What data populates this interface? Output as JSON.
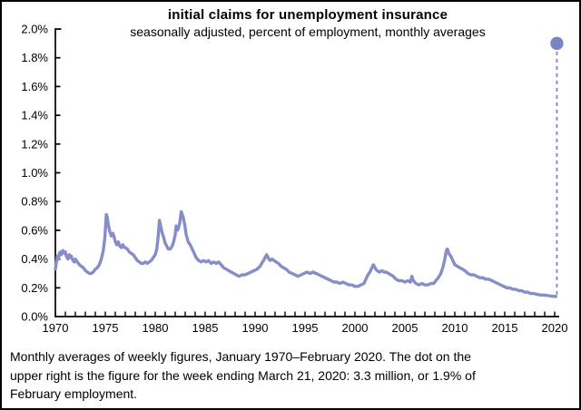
{
  "chart_data": {
    "type": "line",
    "title": "initial claims for unemployment insurance",
    "subtitle": "seasonally adjusted, percent of employment, monthly averages",
    "xlabel": "",
    "ylabel": "",
    "xlim": [
      1970,
      2020.5
    ],
    "ylim": [
      0.0,
      2.0
    ],
    "grid": false,
    "legend": "none",
    "y_ticks": [
      {
        "v": 2.0,
        "label": "2.0%"
      },
      {
        "v": 1.8,
        "label": "1.8%"
      },
      {
        "v": 1.6,
        "label": "1.6%"
      },
      {
        "v": 1.4,
        "label": "1.4%"
      },
      {
        "v": 1.2,
        "label": "1.2%"
      },
      {
        "v": 1.0,
        "label": "1.0%"
      },
      {
        "v": 0.8,
        "label": "0.8%"
      },
      {
        "v": 0.6,
        "label": "0.6%"
      },
      {
        "v": 0.4,
        "label": "0.4%"
      },
      {
        "v": 0.2,
        "label": "0.2%"
      },
      {
        "v": 0.0,
        "label": "0.0%"
      }
    ],
    "x_ticks": [
      {
        "v": 1970,
        "label": "1970"
      },
      {
        "v": 1975,
        "label": "1975"
      },
      {
        "v": 1980,
        "label": "1980"
      },
      {
        "v": 1985,
        "label": "1985"
      },
      {
        "v": 1990,
        "label": "1990"
      },
      {
        "v": 1995,
        "label": "1995"
      },
      {
        "v": 2000,
        "label": "2000"
      },
      {
        "v": 2005,
        "label": "2005"
      },
      {
        "v": 2010,
        "label": "2010"
      },
      {
        "v": 2015,
        "label": "2015"
      },
      {
        "v": 2020,
        "label": "2020"
      }
    ],
    "x_minor_tick_step": 1,
    "axis_color": "#000000",
    "series": [
      {
        "name": "initial claims, percent of employment, monthly average",
        "color": "#868dc7",
        "points": [
          [
            1970.0,
            0.33
          ],
          [
            1970.08,
            0.37
          ],
          [
            1970.2,
            0.42
          ],
          [
            1970.3,
            0.4
          ],
          [
            1970.4,
            0.44
          ],
          [
            1970.5,
            0.45
          ],
          [
            1970.6,
            0.43
          ],
          [
            1970.75,
            0.46
          ],
          [
            1970.9,
            0.44
          ],
          [
            1971.0,
            0.45
          ],
          [
            1971.1,
            0.42
          ],
          [
            1971.25,
            0.4
          ],
          [
            1971.4,
            0.43
          ],
          [
            1971.5,
            0.41
          ],
          [
            1971.6,
            0.42
          ],
          [
            1971.75,
            0.39
          ],
          [
            1971.9,
            0.38
          ],
          [
            1972.0,
            0.4
          ],
          [
            1972.2,
            0.38
          ],
          [
            1972.4,
            0.36
          ],
          [
            1972.6,
            0.35
          ],
          [
            1972.8,
            0.34
          ],
          [
            1973.0,
            0.32
          ],
          [
            1973.2,
            0.31
          ],
          [
            1973.4,
            0.3
          ],
          [
            1973.6,
            0.3
          ],
          [
            1973.8,
            0.31
          ],
          [
            1974.0,
            0.33
          ],
          [
            1974.2,
            0.34
          ],
          [
            1974.4,
            0.36
          ],
          [
            1974.6,
            0.4
          ],
          [
            1974.8,
            0.46
          ],
          [
            1974.95,
            0.55
          ],
          [
            1975.1,
            0.71
          ],
          [
            1975.2,
            0.69
          ],
          [
            1975.3,
            0.64
          ],
          [
            1975.45,
            0.59
          ],
          [
            1975.6,
            0.56
          ],
          [
            1975.75,
            0.58
          ],
          [
            1975.9,
            0.55
          ],
          [
            1976.0,
            0.52
          ],
          [
            1976.15,
            0.5
          ],
          [
            1976.3,
            0.52
          ],
          [
            1976.45,
            0.49
          ],
          [
            1976.6,
            0.48
          ],
          [
            1976.75,
            0.5
          ],
          [
            1976.9,
            0.48
          ],
          [
            1977.0,
            0.48
          ],
          [
            1977.2,
            0.47
          ],
          [
            1977.4,
            0.45
          ],
          [
            1977.6,
            0.44
          ],
          [
            1977.8,
            0.43
          ],
          [
            1978.0,
            0.41
          ],
          [
            1978.2,
            0.39
          ],
          [
            1978.4,
            0.38
          ],
          [
            1978.6,
            0.37
          ],
          [
            1978.8,
            0.37
          ],
          [
            1979.0,
            0.38
          ],
          [
            1979.2,
            0.37
          ],
          [
            1979.4,
            0.38
          ],
          [
            1979.6,
            0.39
          ],
          [
            1979.8,
            0.41
          ],
          [
            1980.0,
            0.43
          ],
          [
            1980.15,
            0.47
          ],
          [
            1980.3,
            0.56
          ],
          [
            1980.42,
            0.67
          ],
          [
            1980.55,
            0.63
          ],
          [
            1980.7,
            0.58
          ],
          [
            1980.85,
            0.55
          ],
          [
            1981.0,
            0.51
          ],
          [
            1981.15,
            0.49
          ],
          [
            1981.3,
            0.47
          ],
          [
            1981.5,
            0.47
          ],
          [
            1981.7,
            0.49
          ],
          [
            1981.85,
            0.52
          ],
          [
            1982.0,
            0.57
          ],
          [
            1982.1,
            0.63
          ],
          [
            1982.2,
            0.6
          ],
          [
            1982.3,
            0.61
          ],
          [
            1982.45,
            0.65
          ],
          [
            1982.6,
            0.73
          ],
          [
            1982.7,
            0.71
          ],
          [
            1982.8,
            0.69
          ],
          [
            1982.95,
            0.64
          ],
          [
            1983.1,
            0.57
          ],
          [
            1983.3,
            0.52
          ],
          [
            1983.5,
            0.5
          ],
          [
            1983.7,
            0.47
          ],
          [
            1983.9,
            0.44
          ],
          [
            1984.1,
            0.41
          ],
          [
            1984.35,
            0.39
          ],
          [
            1984.6,
            0.38
          ],
          [
            1984.85,
            0.39
          ],
          [
            1985.1,
            0.38
          ],
          [
            1985.35,
            0.39
          ],
          [
            1985.6,
            0.37
          ],
          [
            1985.85,
            0.38
          ],
          [
            1986.1,
            0.37
          ],
          [
            1986.35,
            0.38
          ],
          [
            1986.6,
            0.36
          ],
          [
            1986.85,
            0.34
          ],
          [
            1987.1,
            0.33
          ],
          [
            1987.35,
            0.32
          ],
          [
            1987.6,
            0.31
          ],
          [
            1987.85,
            0.3
          ],
          [
            1988.1,
            0.29
          ],
          [
            1988.4,
            0.28
          ],
          [
            1988.7,
            0.29
          ],
          [
            1989.0,
            0.29
          ],
          [
            1989.3,
            0.3
          ],
          [
            1989.6,
            0.31
          ],
          [
            1989.9,
            0.32
          ],
          [
            1990.2,
            0.33
          ],
          [
            1990.5,
            0.35
          ],
          [
            1990.75,
            0.38
          ],
          [
            1991.0,
            0.41
          ],
          [
            1991.15,
            0.43
          ],
          [
            1991.3,
            0.41
          ],
          [
            1991.5,
            0.39
          ],
          [
            1991.7,
            0.4
          ],
          [
            1991.9,
            0.39
          ],
          [
            1992.1,
            0.38
          ],
          [
            1992.35,
            0.37
          ],
          [
            1992.6,
            0.35
          ],
          [
            1992.85,
            0.34
          ],
          [
            1993.1,
            0.33
          ],
          [
            1993.4,
            0.31
          ],
          [
            1993.7,
            0.3
          ],
          [
            1994.0,
            0.29
          ],
          [
            1994.3,
            0.28
          ],
          [
            1994.6,
            0.29
          ],
          [
            1994.9,
            0.3
          ],
          [
            1995.2,
            0.31
          ],
          [
            1995.5,
            0.3
          ],
          [
            1995.8,
            0.31
          ],
          [
            1996.1,
            0.3
          ],
          [
            1996.4,
            0.29
          ],
          [
            1996.7,
            0.28
          ],
          [
            1997.0,
            0.27
          ],
          [
            1997.3,
            0.26
          ],
          [
            1997.6,
            0.25
          ],
          [
            1997.9,
            0.24
          ],
          [
            1998.2,
            0.24
          ],
          [
            1998.5,
            0.23
          ],
          [
            1998.8,
            0.24
          ],
          [
            1999.1,
            0.23
          ],
          [
            1999.4,
            0.22
          ],
          [
            1999.7,
            0.22
          ],
          [
            2000.0,
            0.21
          ],
          [
            2000.3,
            0.21
          ],
          [
            2000.6,
            0.22
          ],
          [
            2000.9,
            0.23
          ],
          [
            2001.1,
            0.26
          ],
          [
            2001.3,
            0.29
          ],
          [
            2001.5,
            0.31
          ],
          [
            2001.7,
            0.34
          ],
          [
            2001.85,
            0.36
          ],
          [
            2002.0,
            0.34
          ],
          [
            2002.2,
            0.32
          ],
          [
            2002.45,
            0.31
          ],
          [
            2002.7,
            0.32
          ],
          [
            2002.9,
            0.31
          ],
          [
            2003.1,
            0.31
          ],
          [
            2003.35,
            0.3
          ],
          [
            2003.6,
            0.29
          ],
          [
            2003.85,
            0.28
          ],
          [
            2004.1,
            0.26
          ],
          [
            2004.4,
            0.25
          ],
          [
            2004.7,
            0.25
          ],
          [
            2005.0,
            0.24
          ],
          [
            2005.3,
            0.25
          ],
          [
            2005.55,
            0.24
          ],
          [
            2005.7,
            0.28
          ],
          [
            2005.85,
            0.25
          ],
          [
            2006.1,
            0.23
          ],
          [
            2006.4,
            0.22
          ],
          [
            2006.7,
            0.23
          ],
          [
            2007.0,
            0.22
          ],
          [
            2007.3,
            0.22
          ],
          [
            2007.6,
            0.23
          ],
          [
            2007.9,
            0.23
          ],
          [
            2008.1,
            0.25
          ],
          [
            2008.35,
            0.27
          ],
          [
            2008.6,
            0.3
          ],
          [
            2008.8,
            0.34
          ],
          [
            2009.0,
            0.4
          ],
          [
            2009.15,
            0.46
          ],
          [
            2009.25,
            0.47
          ],
          [
            2009.4,
            0.44
          ],
          [
            2009.6,
            0.42
          ],
          [
            2009.8,
            0.39
          ],
          [
            2010.0,
            0.36
          ],
          [
            2010.25,
            0.35
          ],
          [
            2010.5,
            0.34
          ],
          [
            2010.75,
            0.33
          ],
          [
            2011.0,
            0.32
          ],
          [
            2011.3,
            0.3
          ],
          [
            2011.6,
            0.29
          ],
          [
            2011.9,
            0.29
          ],
          [
            2012.2,
            0.28
          ],
          [
            2012.5,
            0.27
          ],
          [
            2012.8,
            0.27
          ],
          [
            2013.1,
            0.26
          ],
          [
            2013.4,
            0.26
          ],
          [
            2013.7,
            0.25
          ],
          [
            2014.0,
            0.24
          ],
          [
            2014.3,
            0.23
          ],
          [
            2014.6,
            0.22
          ],
          [
            2014.9,
            0.21
          ],
          [
            2015.2,
            0.2
          ],
          [
            2015.5,
            0.2
          ],
          [
            2015.8,
            0.19
          ],
          [
            2016.1,
            0.19
          ],
          [
            2016.4,
            0.18
          ],
          [
            2016.7,
            0.18
          ],
          [
            2017.0,
            0.17
          ],
          [
            2017.3,
            0.17
          ],
          [
            2017.6,
            0.16
          ],
          [
            2017.9,
            0.16
          ],
          [
            2018.2,
            0.155
          ],
          [
            2018.5,
            0.15
          ],
          [
            2018.8,
            0.15
          ],
          [
            2019.1,
            0.148
          ],
          [
            2019.4,
            0.145
          ],
          [
            2019.7,
            0.142
          ],
          [
            2020.0,
            0.14
          ],
          [
            2020.12,
            0.14
          ]
        ]
      }
    ],
    "annotation": {
      "type": "dot",
      "x": 2020.22,
      "y": 1.9,
      "connect_to_y": 0.145,
      "color": "#7a83c4",
      "connector_style": "dashed",
      "meaning": "week ending March 21, 2020: 3.3 million, or 1.9% of February employment"
    }
  },
  "caption": {
    "lines": [
      "Monthly averages of weekly figures, January 1970–February 2020. The dot on the",
      "upper right is the figure for the week ending March 21, 2020: 3.3 million, or 1.9% of",
      "February employment."
    ]
  },
  "colors": {
    "background": "#ffffff",
    "border": "#000000",
    "text": "#000000"
  }
}
